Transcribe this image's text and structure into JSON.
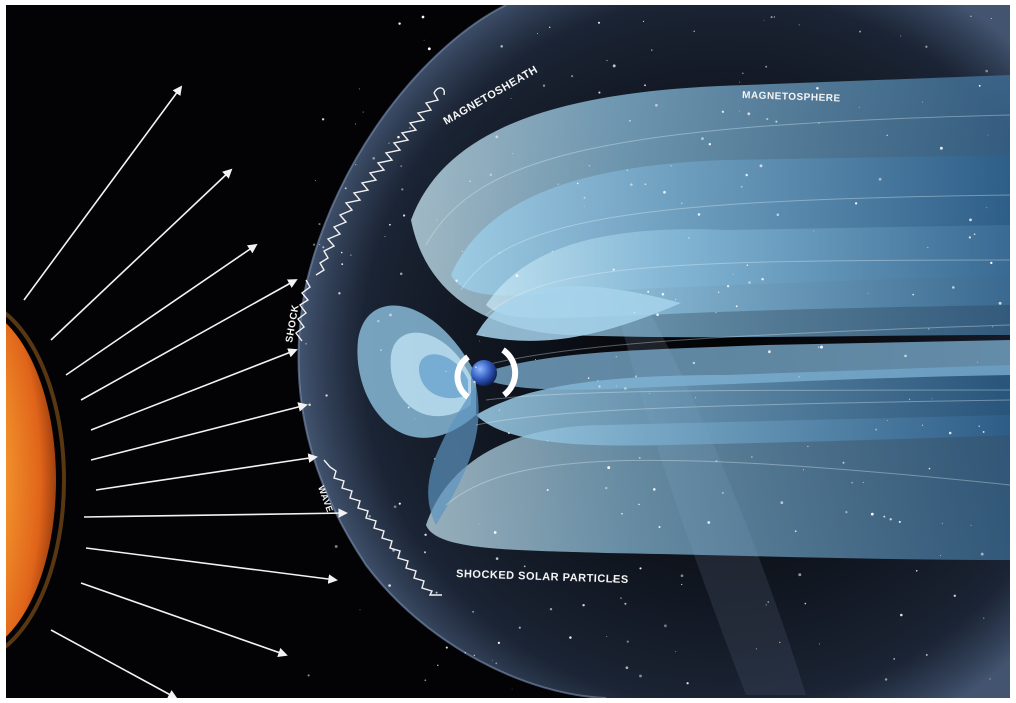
{
  "labels": {
    "magnetosheath": "MAGNETOSHEATH",
    "magnetosphere": "MAGNETOSPHERE",
    "shock": "SHOCK",
    "wave": "WAVE",
    "shocked_particles": "SHOCKED SOLAR PARTICLES"
  },
  "colors": {
    "space": "#030305",
    "sun_core": "#ffe9a0",
    "sun_edge": "#e0641a",
    "field_light": "#bfe4f5",
    "field_mid": "#6fa9cf",
    "field_dark": "#2d5f8a",
    "sheath": "#3a4f6e"
  },
  "icons": {
    "sun": "sun-icon",
    "earth": "earth-icon"
  }
}
